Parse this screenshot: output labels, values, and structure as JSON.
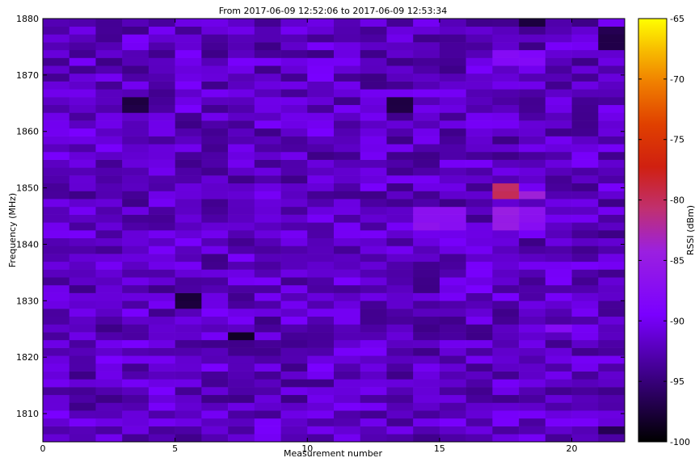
{
  "chart_data": {
    "type": "heatmap",
    "title": "From 2017-06-09 12:52:06 to 2017-06-09 12:53:34",
    "xlabel": "Measurement number",
    "ylabel": "Frequency (MHz)",
    "xlim": [
      0,
      22
    ],
    "ylim": [
      1805,
      1880
    ],
    "xticks": [
      0,
      5,
      10,
      15,
      20
    ],
    "yticks": [
      1810,
      1820,
      1830,
      1840,
      1850,
      1860,
      1870,
      1880
    ],
    "colorbar": {
      "label": "RSSI (dBm)",
      "range": [
        -100,
        -65
      ],
      "ticks": [
        -65,
        -70,
        -75,
        -80,
        -85,
        -90,
        -95,
        -100
      ],
      "colormap": "gnuplot-like (black-purple-red-orange-yellow)"
    },
    "n_measurements": 22,
    "frequency_bins": 54,
    "baseline_rssi_dbm": -92,
    "hotspots": [
      {
        "measurement": 17,
        "freq_min": 1848.5,
        "freq_max": 1850.5,
        "rssi": -80
      },
      {
        "measurement": 18,
        "freq_min": 1848.5,
        "freq_max": 1850,
        "rssi": -84
      },
      {
        "measurement": 17,
        "freq_min": 1842,
        "freq_max": 1846,
        "rssi": -85
      },
      {
        "measurement": 18,
        "freq_min": 1842,
        "freq_max": 1846,
        "rssi": -87
      },
      {
        "measurement": 14,
        "freq_min": 1842,
        "freq_max": 1846,
        "rssi": -86.5
      },
      {
        "measurement": 15,
        "freq_min": 1842,
        "freq_max": 1846,
        "rssi": -87
      },
      {
        "measurement": 17,
        "freq_min": 1871,
        "freq_max": 1875,
        "rssi": -88
      },
      {
        "measurement": 18,
        "freq_min": 1871,
        "freq_max": 1875,
        "rssi": -88.5
      },
      {
        "measurement": 19,
        "freq_min": 1825,
        "freq_max": 1826.5,
        "rssi": -87.5
      },
      {
        "measurement": 0,
        "freq_min": 1859.5,
        "freq_max": 1861,
        "rssi": -90
      },
      {
        "measurement": 14,
        "freq_min": 1858.5,
        "freq_max": 1860.5,
        "rssi": -90
      }
    ],
    "coldspots": [
      {
        "measurement": 5,
        "freq_min": 1829,
        "freq_max": 1831.5,
        "rssi": -98
      },
      {
        "measurement": 7,
        "freq_min": 1823,
        "freq_max": 1824.5,
        "rssi": -98
      },
      {
        "measurement": 3,
        "freq_min": 1864,
        "freq_max": 1865.5,
        "rssi": -97.5
      },
      {
        "measurement": 18,
        "freq_min": 1878,
        "freq_max": 1880,
        "rssi": -97
      },
      {
        "measurement": 21,
        "freq_min": 1875,
        "freq_max": 1878,
        "rssi": -97
      },
      {
        "measurement": 13,
        "freq_min": 1864,
        "freq_max": 1865.5,
        "rssi": -97.5
      },
      {
        "measurement": 21,
        "freq_min": 1806,
        "freq_max": 1808,
        "rssi": -97
      }
    ]
  }
}
